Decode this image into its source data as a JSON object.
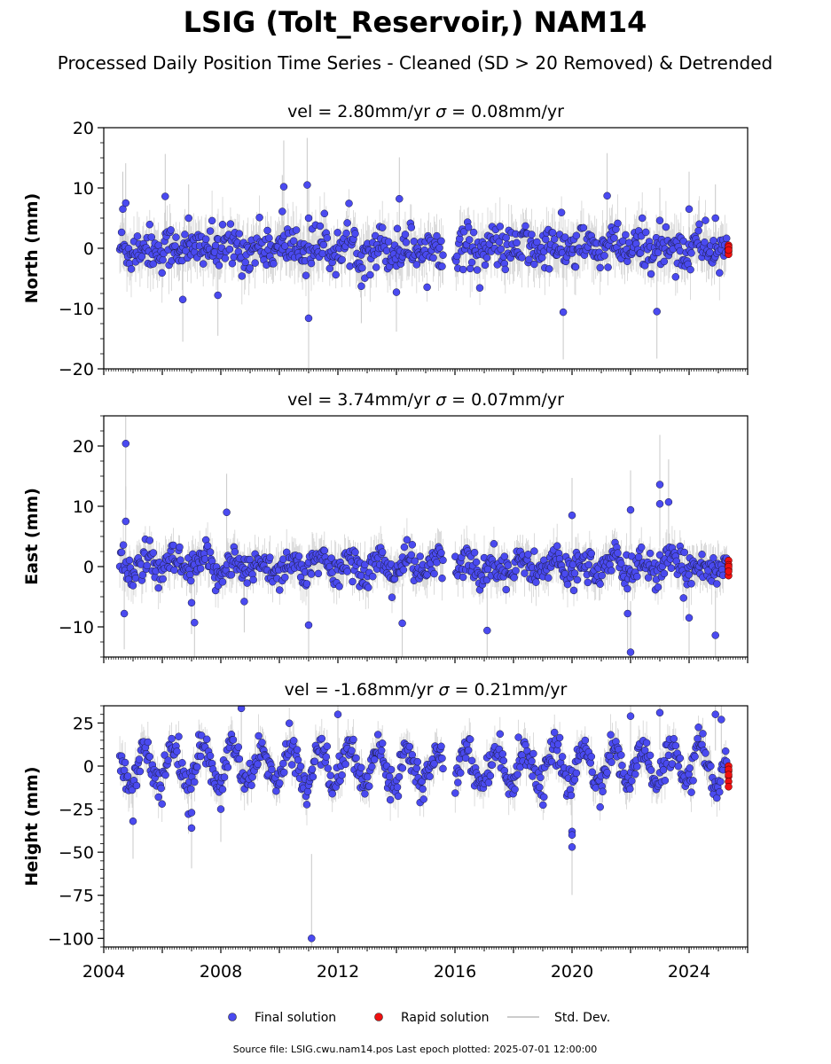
{
  "chart_data": {
    "type": "scatter",
    "title": "LSIG (Tolt_Reservoir,) NAM14",
    "subtitle": "Processed Daily Position Time Series - Cleaned (SD > 20 Removed) & Detrended",
    "x_ticks": [
      "2004",
      "2008",
      "2012",
      "2016",
      "2020",
      "2024"
    ],
    "xlim": [
      2004.0,
      2026.0
    ],
    "data_gap": [
      2015.6,
      2016.0
    ],
    "x_start": 2004.55,
    "x_end": 2025.3,
    "rapid_x": 2025.35,
    "grid": false,
    "legend_position": "bottom-center",
    "colors": {
      "final": "#4a4af0",
      "rapid": "#ee1111",
      "stddev": "#cccccc"
    },
    "panels": [
      {
        "id": "north",
        "ylabel": "North (mm)",
        "vel_text": "vel = 2.80mm/yr",
        "sigma_text": "= 0.08mm/yr",
        "ylim": [
          -20,
          20
        ],
        "y_ticks": [
          "20",
          "10",
          "0",
          "−10",
          "−20"
        ],
        "y_tick_values": [
          20,
          10,
          0,
          -10,
          -20
        ],
        "minor_step": 2.5,
        "scatter_sd": 1.8,
        "seasonal_amp": 0.6,
        "outliers": [
          [
            2004.65,
            6.5
          ],
          [
            2004.75,
            7.5
          ],
          [
            2006.1,
            8.6
          ],
          [
            2006.7,
            -8.5
          ],
          [
            2006.9,
            5.0
          ],
          [
            2007.9,
            -7.8
          ],
          [
            2010.15,
            10.2
          ],
          [
            2010.1,
            6.1
          ],
          [
            2010.95,
            10.5
          ],
          [
            2011.0,
            5.0
          ],
          [
            2011.0,
            -11.6
          ],
          [
            2012.8,
            -6.3
          ],
          [
            2014.1,
            8.2
          ],
          [
            2014.0,
            -7.3
          ],
          [
            2019.7,
            -10.6
          ],
          [
            2021.2,
            8.7
          ],
          [
            2022.9,
            -10.5
          ],
          [
            2023.0,
            4.6
          ],
          [
            2024.0,
            6.5
          ],
          [
            2024.9,
            5.0
          ]
        ],
        "rapid_values": [
          0.5,
          0.0,
          -0.5,
          -1.0,
          0.2,
          -0.3
        ]
      },
      {
        "id": "east",
        "ylabel": "East (mm)",
        "vel_text": "vel = 3.74mm/yr",
        "sigma_text": "= 0.07mm/yr",
        "ylim": [
          -15,
          25
        ],
        "y_ticks": [
          "20",
          "10",
          "0",
          "−10"
        ],
        "y_tick_values": [
          20,
          10,
          0,
          -10
        ],
        "minor_step": 2.5,
        "scatter_sd": 1.4,
        "seasonal_amp": 1.2,
        "outliers": [
          [
            2004.75,
            20.4
          ],
          [
            2004.7,
            -7.8
          ],
          [
            2004.75,
            7.5
          ],
          [
            2007.0,
            -6.0
          ],
          [
            2007.1,
            -9.3
          ],
          [
            2008.2,
            9.0
          ],
          [
            2008.8,
            -5.8
          ],
          [
            2011.0,
            -9.7
          ],
          [
            2014.2,
            -9.4
          ],
          [
            2017.1,
            -10.6
          ],
          [
            2020.0,
            8.5
          ],
          [
            2022.0,
            9.4
          ],
          [
            2021.9,
            -7.8
          ],
          [
            2022.0,
            -14.2
          ],
          [
            2023.0,
            13.6
          ],
          [
            2023.0,
            10.4
          ],
          [
            2023.3,
            10.7
          ],
          [
            2024.0,
            -8.5
          ],
          [
            2024.9,
            -11.4
          ]
        ],
        "rapid_values": [
          1.0,
          0.3,
          -0.5,
          -1.5,
          0.0,
          -0.8
        ]
      },
      {
        "id": "height",
        "ylabel": "Height (mm)",
        "vel_text": "vel = -1.68mm/yr",
        "sigma_text": "= 0.21mm/yr",
        "ylim": [
          -105,
          35
        ],
        "y_ticks": [
          "25",
          "0",
          "−25",
          "−50",
          "−75",
          "−100"
        ],
        "y_tick_values": [
          25,
          0,
          -25,
          -50,
          -75,
          -100
        ],
        "minor_step": 5,
        "scatter_sd": 4.5,
        "seasonal_amp": 11,
        "outliers": [
          [
            2005.0,
            -32
          ],
          [
            2007.0,
            -36
          ],
          [
            2007.0,
            -27
          ],
          [
            2008.0,
            -25
          ],
          [
            2008.7,
            33.5
          ],
          [
            2011.1,
            -100
          ],
          [
            2012.0,
            30
          ],
          [
            2020.0,
            -38
          ],
          [
            2020.0,
            -40
          ],
          [
            2020.0,
            -47
          ],
          [
            2022.0,
            29
          ],
          [
            2023.0,
            31
          ],
          [
            2024.9,
            30
          ],
          [
            2025.1,
            27
          ]
        ],
        "rapid_values": [
          0,
          -3,
          -6,
          -9,
          -12,
          -2,
          -5
        ]
      }
    ],
    "legend": [
      "Final solution",
      "Rapid solution",
      "Std. Dev."
    ]
  },
  "footer": "Source file: LSIG.cwu.nam14.pos  Last epoch plotted: 2025-07-01 12:00:00"
}
